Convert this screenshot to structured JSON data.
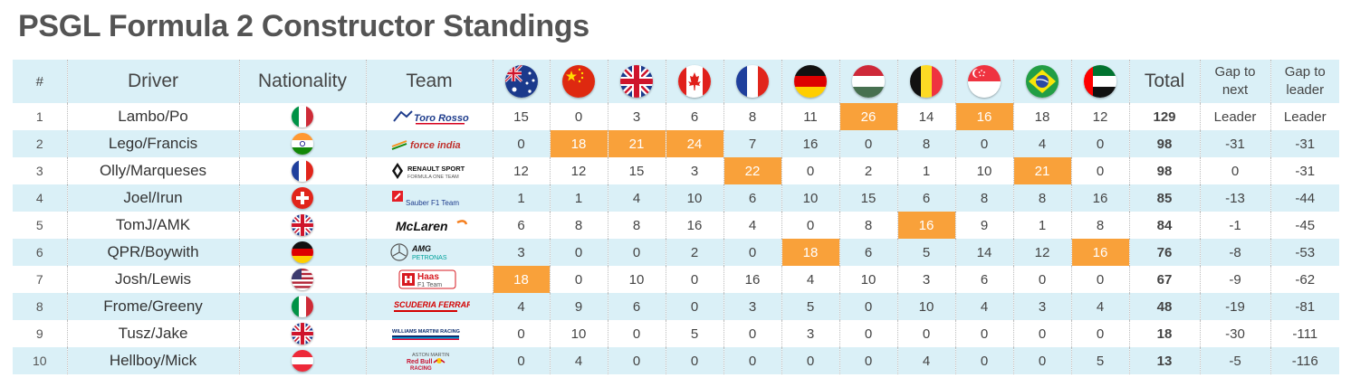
{
  "title": "PSGL Formula 2 Constructor Standings",
  "headers": {
    "pos": "#",
    "driver": "Driver",
    "nationality": "Nationality",
    "team": "Team",
    "total": "Total",
    "gap_next": "Gap to next",
    "gap_leader": "Gap to leader"
  },
  "races": [
    {
      "flag": "australia-flag-icon"
    },
    {
      "flag": "china-flag-icon"
    },
    {
      "flag": "uk-flag-icon"
    },
    {
      "flag": "canada-flag-icon"
    },
    {
      "flag": "france-flag-icon"
    },
    {
      "flag": "germany-flag-icon"
    },
    {
      "flag": "hungary-flag-icon"
    },
    {
      "flag": "belgium-flag-icon"
    },
    {
      "flag": "singapore-flag-icon"
    },
    {
      "flag": "brazil-flag-icon"
    },
    {
      "flag": "uae-flag-icon"
    }
  ],
  "highlight_color": "#f9a13a",
  "rows": [
    {
      "pos": "1",
      "driver": "Lambo/Po",
      "nationality": "italy-flag-icon",
      "team": "toro-rosso-logo",
      "team_text": "Toro Rosso",
      "scores": [
        "15",
        "0",
        "3",
        "6",
        "8",
        "11",
        "26",
        "14",
        "16",
        "18",
        "12"
      ],
      "highlight": [
        6,
        8
      ],
      "total": "129",
      "gap_next": "Leader",
      "gap_leader": "Leader"
    },
    {
      "pos": "2",
      "driver": "Lego/Francis",
      "nationality": "india-flag-icon",
      "team": "force-india-logo",
      "team_text": "force india",
      "scores": [
        "0",
        "18",
        "21",
        "24",
        "7",
        "16",
        "0",
        "8",
        "0",
        "4",
        "0"
      ],
      "highlight": [
        1,
        2,
        3
      ],
      "total": "98",
      "gap_next": "-31",
      "gap_leader": "-31"
    },
    {
      "pos": "3",
      "driver": "Olly/Marqueses",
      "nationality": "france-flag-icon",
      "team": "renault-logo",
      "team_text": "RENAULT SPORT",
      "team_sub": "FORMULA ONE TEAM",
      "scores": [
        "12",
        "12",
        "15",
        "3",
        "22",
        "0",
        "2",
        "1",
        "10",
        "21",
        "0"
      ],
      "highlight": [
        4,
        9
      ],
      "total": "98",
      "gap_next": "0",
      "gap_leader": "-31"
    },
    {
      "pos": "4",
      "driver": "Joel/Irun",
      "nationality": "switzerland-flag-icon",
      "team": "sauber-logo",
      "team_text": "Sauber F1 Team",
      "scores": [
        "1",
        "1",
        "4",
        "10",
        "6",
        "10",
        "15",
        "6",
        "8",
        "8",
        "16"
      ],
      "highlight": [],
      "total": "85",
      "gap_next": "-13",
      "gap_leader": "-44"
    },
    {
      "pos": "5",
      "driver": "TomJ/AMK",
      "nationality": "uk-flag-icon",
      "team": "mclaren-logo",
      "team_text": "McLaren",
      "scores": [
        "6",
        "8",
        "8",
        "16",
        "4",
        "0",
        "8",
        "16",
        "9",
        "1",
        "8"
      ],
      "highlight": [
        7
      ],
      "total": "84",
      "gap_next": "-1",
      "gap_leader": "-45"
    },
    {
      "pos": "6",
      "driver": "QPR/Boywith",
      "nationality": "germany-flag-icon",
      "team": "mercedes-logo",
      "team_text": "AMG",
      "team_sub": "PETRONAS",
      "scores": [
        "3",
        "0",
        "0",
        "2",
        "0",
        "18",
        "6",
        "5",
        "14",
        "12",
        "16"
      ],
      "highlight": [
        5,
        10
      ],
      "total": "76",
      "gap_next": "-8",
      "gap_leader": "-53"
    },
    {
      "pos": "7",
      "driver": "Josh/Lewis",
      "nationality": "usa-flag-icon",
      "team": "haas-logo",
      "team_text": "Haas",
      "team_sub": "F1 Team",
      "scores": [
        "18",
        "0",
        "10",
        "0",
        "16",
        "4",
        "10",
        "3",
        "6",
        "0",
        "0"
      ],
      "highlight": [
        0
      ],
      "total": "67",
      "gap_next": "-9",
      "gap_leader": "-62"
    },
    {
      "pos": "8",
      "driver": "Frome/Greeny",
      "nationality": "italy-flag-icon",
      "team": "ferrari-logo",
      "team_text": "SCUDERIA FERRARI",
      "scores": [
        "4",
        "9",
        "6",
        "0",
        "3",
        "5",
        "0",
        "10",
        "4",
        "3",
        "4"
      ],
      "highlight": [],
      "total": "48",
      "gap_next": "-19",
      "gap_leader": "-81"
    },
    {
      "pos": "9",
      "driver": "Tusz/Jake",
      "nationality": "uk-flag-icon",
      "team": "williams-logo",
      "team_text": "WILLIAMS MARTINI RACING",
      "scores": [
        "0",
        "10",
        "0",
        "5",
        "0",
        "3",
        "0",
        "0",
        "0",
        "0",
        "0"
      ],
      "highlight": [],
      "total": "18",
      "gap_next": "-30",
      "gap_leader": "-111"
    },
    {
      "pos": "10",
      "driver": "Hellboy/Mick",
      "nationality": "austria-flag-icon",
      "team": "redbull-logo",
      "team_text": "ASTON MARTIN",
      "team_sub": "RACING",
      "scores": [
        "0",
        "4",
        "0",
        "0",
        "0",
        "0",
        "0",
        "4",
        "0",
        "0",
        "5"
      ],
      "highlight": [],
      "total": "13",
      "gap_next": "-5",
      "gap_leader": "-116"
    }
  ]
}
